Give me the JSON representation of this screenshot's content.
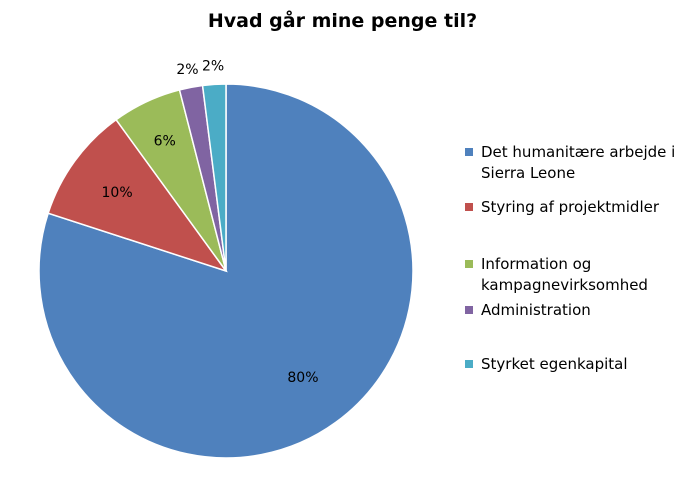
{
  "chart_data": {
    "type": "pie",
    "title": "Hvad går mine penge til?",
    "categories": [
      "Det humanitære arbejde i Sierra Leone",
      "Styring af projektmidler",
      "Information og kampagnevirksomhed",
      "Administration",
      "Styrket egenkapital"
    ],
    "values": [
      80,
      10,
      6,
      2,
      2
    ],
    "data_labels": [
      "80%",
      "10%",
      "6%",
      "2%",
      "2%"
    ],
    "colors": [
      "#4f81bd",
      "#c0504d",
      "#9bbb59",
      "#8064a2",
      "#4bacc6"
    ],
    "legend": "right",
    "grid": false
  }
}
